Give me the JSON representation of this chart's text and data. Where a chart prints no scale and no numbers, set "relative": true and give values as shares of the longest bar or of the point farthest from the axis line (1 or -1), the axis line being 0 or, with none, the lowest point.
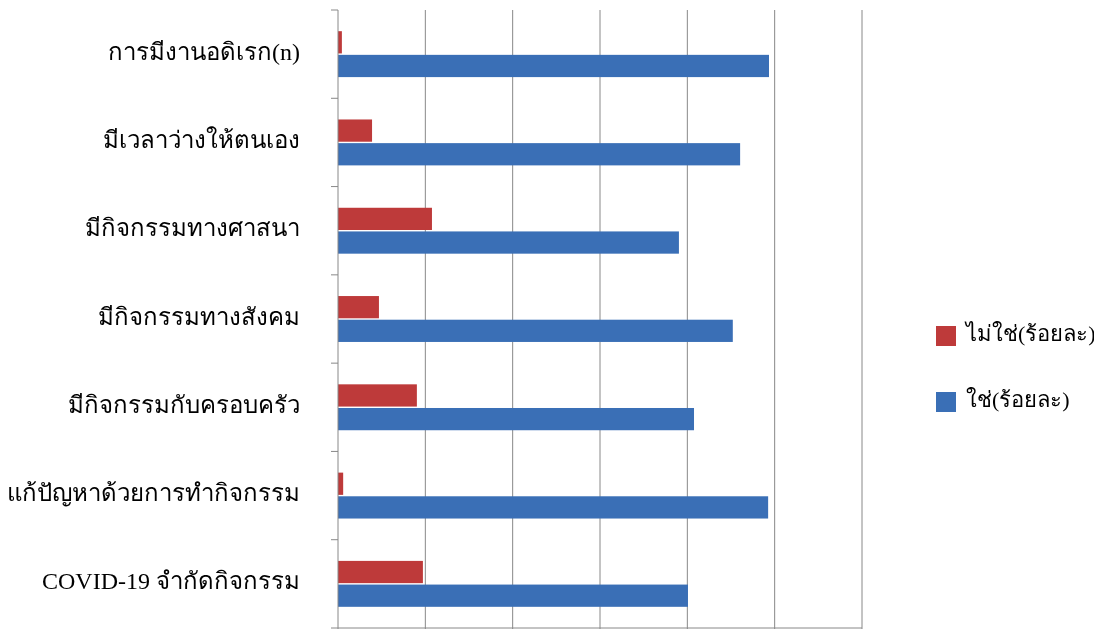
{
  "chart_data": {
    "type": "bar",
    "orientation": "horizontal",
    "relative": true,
    "grid": "x",
    "legend": "right",
    "categories": [
      "การมีงานอดิเรก(n)",
      "มีเวลาว่างให้ตนเอง",
      "มีกิจกรรมทางศาสนา",
      "มีกิจกรรมทางสังคม",
      "มีกิจกรรมกับครอบครัว",
      "แก้ปัญหาด้วยการทำกิจกรรม",
      "COVID-19 จำกัดกิจกรรม"
    ],
    "series": [
      {
        "name": "ไม่ใช่(ร้อยละ)",
        "color": "#be3a3a",
        "values": [
          0.009,
          0.079,
          0.218,
          0.095,
          0.183,
          0.012,
          0.197
        ]
      },
      {
        "name": "ใช่(ร้อยละ)",
        "color": "#3a6fb6",
        "values": [
          1.0,
          0.933,
          0.791,
          0.916,
          0.826,
          0.998,
          0.812
        ]
      }
    ]
  }
}
